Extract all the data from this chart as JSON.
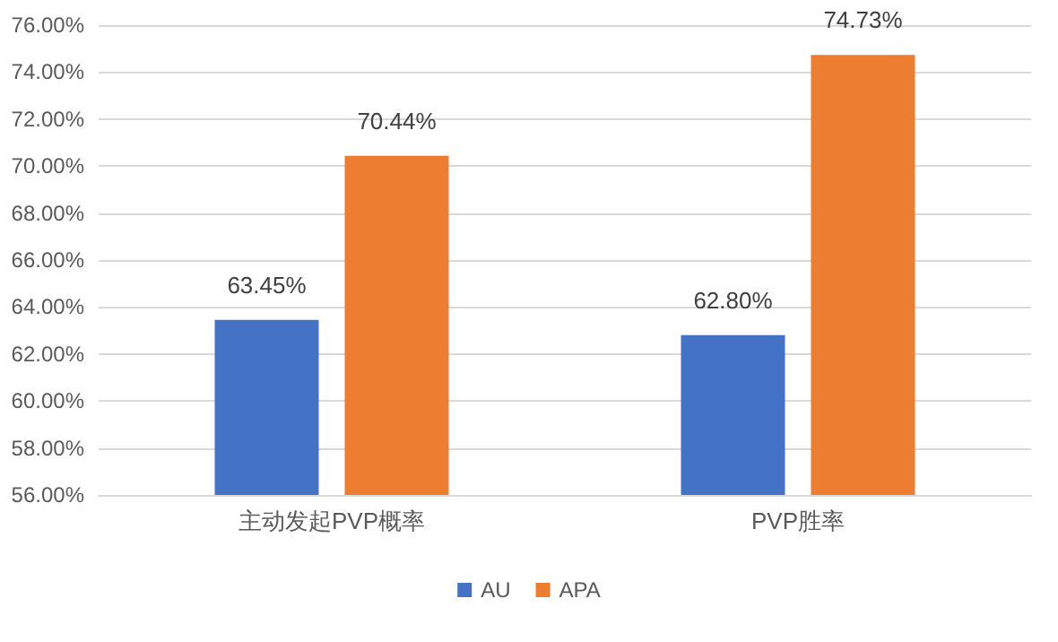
{
  "chart_data": {
    "type": "bar",
    "categories": [
      "主动发起PVP概率",
      "PVP胜率"
    ],
    "series": [
      {
        "name": "AU",
        "color": "#4472c4",
        "values": [
          63.45,
          62.8
        ],
        "value_labels": [
          "63.45%",
          "62.80%"
        ]
      },
      {
        "name": "APA",
        "color": "#ed7d31",
        "values": [
          70.44,
          74.73
        ],
        "value_labels": [
          "70.44%",
          "74.73%"
        ]
      }
    ],
    "ylim": [
      56,
      76
    ],
    "yticks": [
      {
        "value": 56,
        "label": "56.00%"
      },
      {
        "value": 58,
        "label": "58.00%"
      },
      {
        "value": 60,
        "label": "60.00%"
      },
      {
        "value": 62,
        "label": "62.00%"
      },
      {
        "value": 64,
        "label": "64.00%"
      },
      {
        "value": 66,
        "label": "66.00%"
      },
      {
        "value": 68,
        "label": "68.00%"
      },
      {
        "value": 70,
        "label": "70.00%"
      },
      {
        "value": 72,
        "label": "72.00%"
      },
      {
        "value": 74,
        "label": "74.00%"
      },
      {
        "value": 76,
        "label": "76.00%"
      }
    ],
    "grid": "y",
    "legend": "bottom"
  }
}
